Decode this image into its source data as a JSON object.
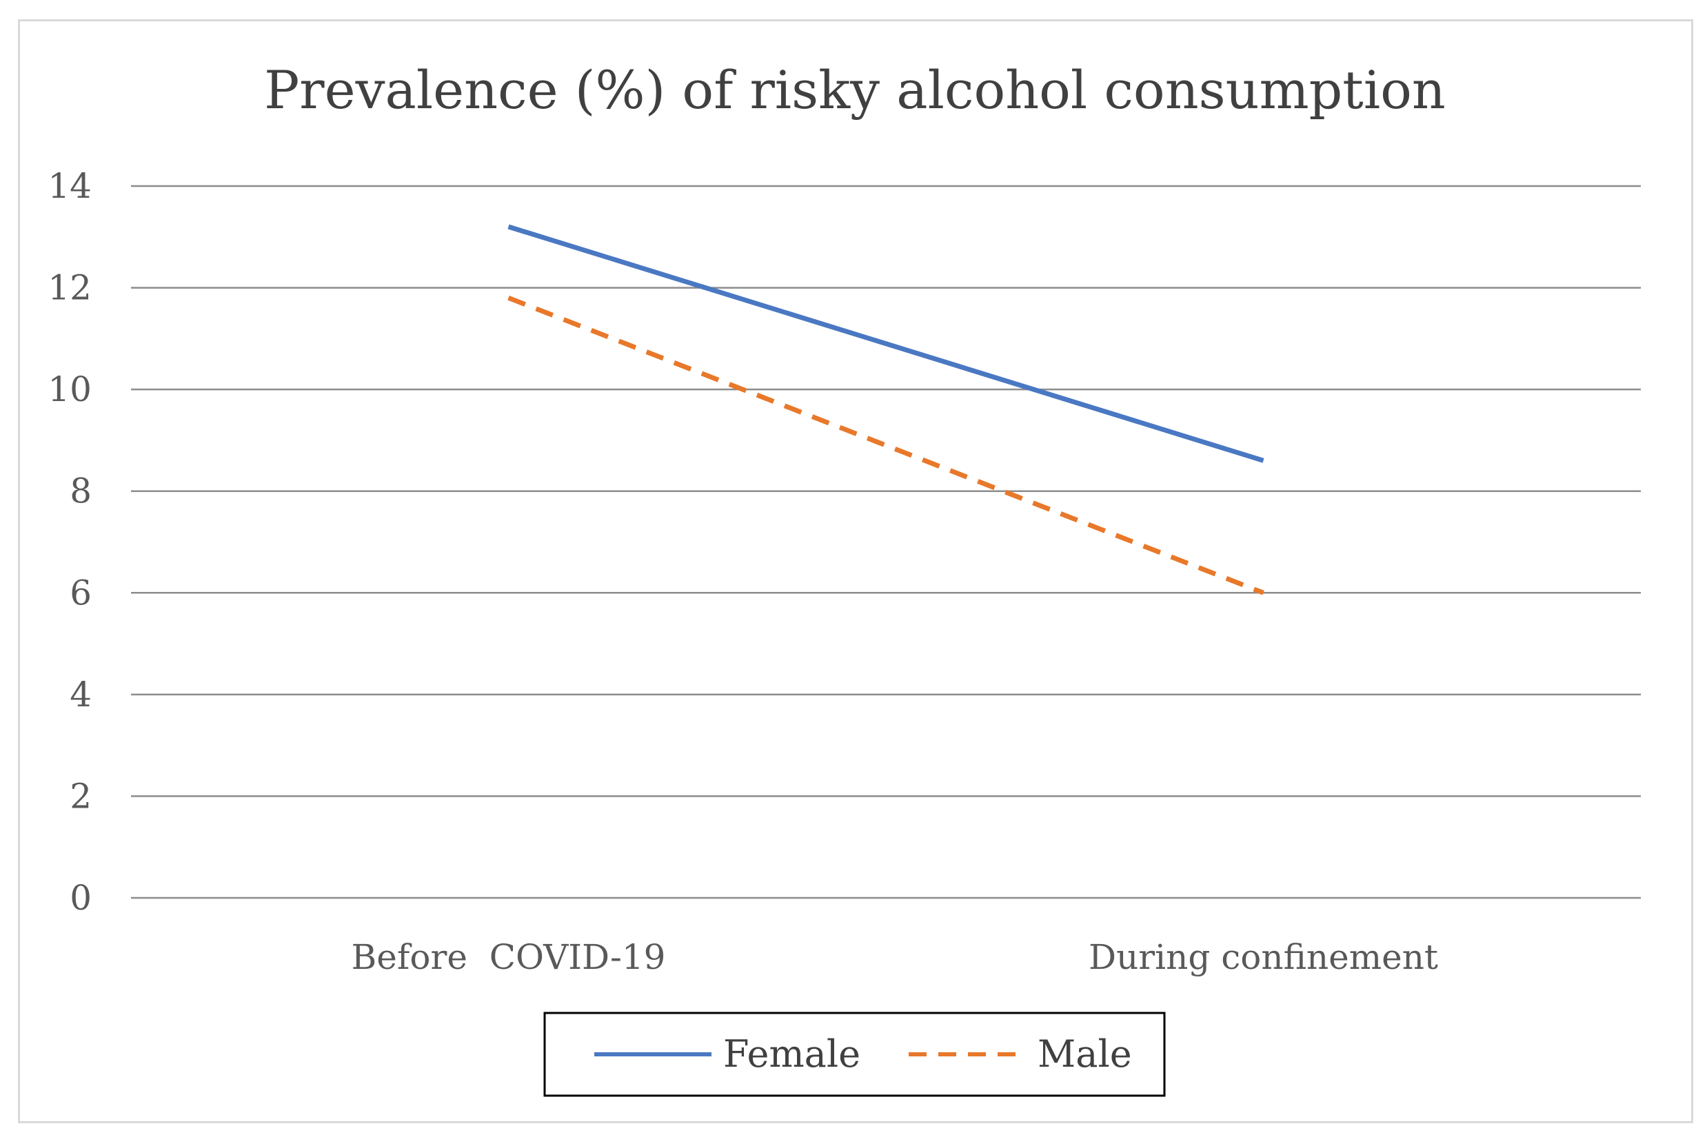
{
  "chart_data": {
    "type": "line",
    "title": "Prevalence (%) of risky alcohol consumption",
    "xlabel": "",
    "ylabel": "",
    "categories": [
      "Before  COVID-19",
      "During confinement"
    ],
    "ylim": [
      0,
      14
    ],
    "yticks": [
      0,
      2,
      4,
      6,
      8,
      10,
      12,
      14
    ],
    "grid": true,
    "legend_position": "bottom",
    "series": [
      {
        "name": "Female",
        "values": [
          13.2,
          8.6
        ],
        "color": "#4a78c2",
        "dash": "solid"
      },
      {
        "name": "Male",
        "values": [
          11.8,
          6.0
        ],
        "color": "#e8782a",
        "dash": "dashed"
      }
    ]
  }
}
